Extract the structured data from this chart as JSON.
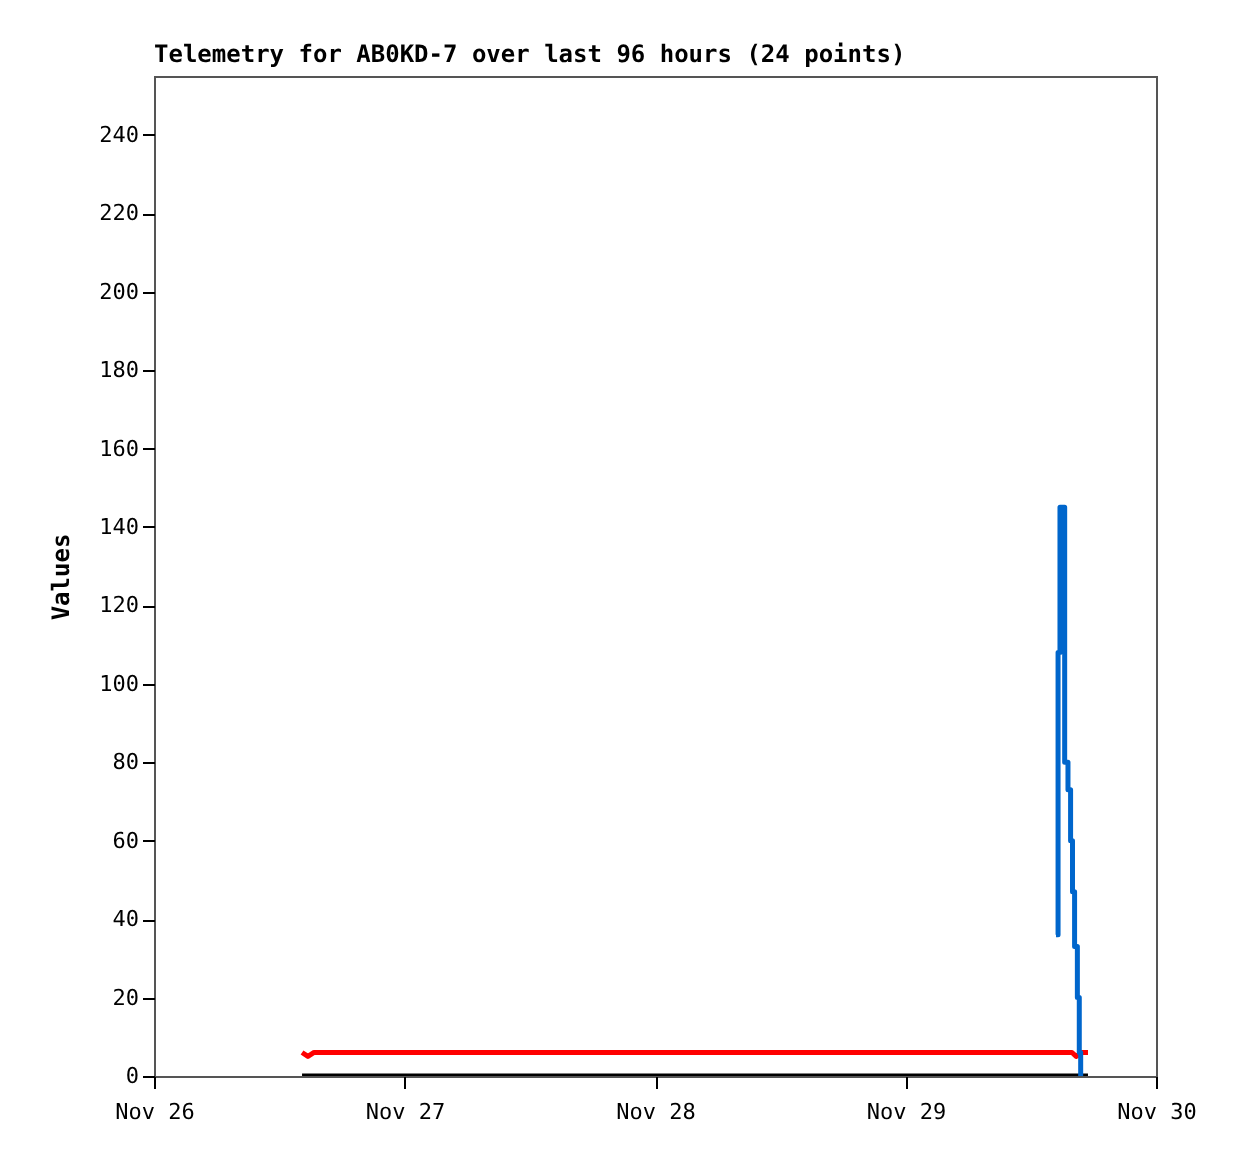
{
  "chart_data": {
    "type": "line",
    "title": "Telemetry for AB0KD-7 over last 96 hours (24 points)",
    "ylabel": "Values",
    "xlim": [
      "--11-26",
      "--11-30"
    ],
    "xticks": [
      {
        "value": "--11-26",
        "label": "Nov 26"
      },
      {
        "value": "--11-27",
        "label": "Nov 27"
      },
      {
        "value": "--11-28",
        "label": "Nov 28"
      },
      {
        "value": "--11-29",
        "label": "Nov 29"
      },
      {
        "value": "--11-30",
        "label": "Nov 30"
      }
    ],
    "ylim": [
      0,
      255
    ],
    "yticks": [
      0,
      20,
      40,
      60,
      80,
      100,
      120,
      140,
      160,
      180,
      200,
      220,
      240
    ],
    "grid": false,
    "series": [
      {
        "color": "#000000",
        "x": [
          "--11-26T14:11",
          "--11-29T17:29"
        ],
        "values": [
          0,
          0
        ]
      },
      {
        "type": "line",
        "color": "#ff0000",
        "x": [
          "--11-26T14:11",
          "--11-26T14:45",
          "--11-26T15:20",
          "--11-29T15:57",
          "--11-29T16:21",
          "--11-29T16:54",
          "--11-29T17:29"
        ],
        "values": [
          6,
          5,
          6,
          6,
          5,
          6,
          6
        ]
      },
      {
        "type": "step",
        "color": "#0066cc",
        "x": [
          "--11-29T14:25",
          "--11-29T14:37",
          "--11-29T14:48",
          "--11-29T15:15",
          "--11-29T15:34",
          "--11-29T15:49",
          "--11-29T16:00",
          "--11-29T16:12",
          "--11-29T16:28",
          "--11-29T16:39",
          "--11-29T16:47"
        ],
        "values": [
          36,
          108,
          145,
          80,
          73,
          60,
          47,
          33,
          20,
          6,
          0
        ]
      }
    ]
  }
}
